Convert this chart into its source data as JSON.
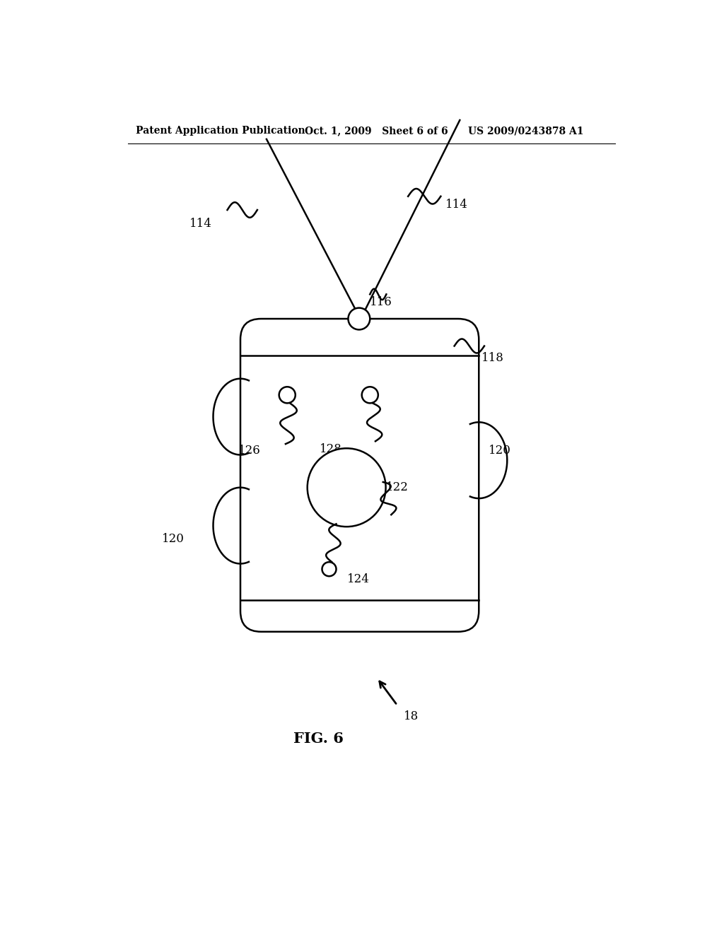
{
  "background_color": "#ffffff",
  "header_left": "Patent Application Publication",
  "header_mid": "Oct. 1, 2009   Sheet 6 of 6",
  "header_right": "US 2009/0243878 A1",
  "fig_label": "FIG. 6",
  "labels": {
    "114_left": "114",
    "114_right": "114",
    "116": "116",
    "118": "118",
    "120_right": "120",
    "120_left": "120",
    "122": "122",
    "124": "124",
    "126": "126",
    "128": "128",
    "18": "18"
  }
}
